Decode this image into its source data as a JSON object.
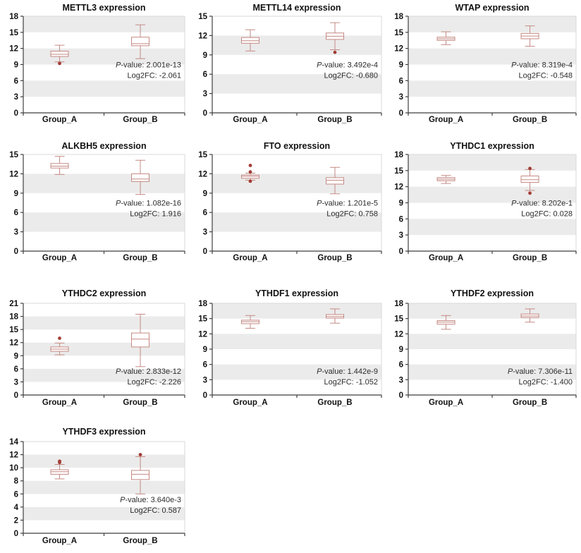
{
  "figure": {
    "description": "Grid of box plots comparing m6A regulator gene expression between Group_A and Group_B",
    "background": "#ffffff"
  },
  "styles": {
    "box_stroke": "#c48a84",
    "box_fill": "#ffffff",
    "outlier_fill": "#a23c36",
    "band_gray": "#ebebeb",
    "plot_border": "#d9d9d9",
    "axis_color": "#3f3f3f",
    "label_color": "#111111",
    "annot_color": "#2b2b2b"
  },
  "strings": {
    "p_italic": "P",
    "p_rest": "-value: ",
    "fc_label": "Log2FC: "
  },
  "chart_data": [
    {
      "type": "box",
      "title": "METTL3 expression",
      "categories": [
        "Group_A",
        "Group_B"
      ],
      "ylim": [
        0,
        18
      ],
      "ytick_step": 3,
      "grid_bands": "alternating",
      "series": [
        {
          "name": "Group_A",
          "whislo": 9.5,
          "q1": 10.5,
          "med": 10.9,
          "q3": 11.5,
          "whishi": 12.6,
          "outliers": [
            9.2
          ]
        },
        {
          "name": "Group_B",
          "whislo": 10.1,
          "q1": 12.5,
          "med": 12.9,
          "q3": 14.1,
          "whishi": 16.4,
          "outliers": []
        }
      ],
      "p_value": "2.001e-13",
      "log2fc": "-2.061",
      "layout": {
        "annot_y_frac": 0.53
      }
    },
    {
      "type": "box",
      "title": "METTL14 expression",
      "categories": [
        "Group_A",
        "Group_B"
      ],
      "ylim": [
        0,
        15
      ],
      "ytick_step": 3,
      "grid_bands": "alternating",
      "series": [
        {
          "name": "Group_A",
          "whislo": 9.6,
          "q1": 10.8,
          "med": 11.2,
          "q3": 11.7,
          "whishi": 12.9,
          "outliers": []
        },
        {
          "name": "Group_B",
          "whislo": 9.8,
          "q1": 11.4,
          "med": 11.9,
          "q3": 12.4,
          "whishi": 14.0,
          "outliers": [
            9.4
          ]
        }
      ],
      "p_value": "3.492e-4",
      "log2fc": "-0.680",
      "layout": {
        "annot_y_frac": 0.53
      }
    },
    {
      "type": "box",
      "title": "WTAP expression",
      "categories": [
        "Group_A",
        "Group_B"
      ],
      "ylim": [
        0,
        18
      ],
      "ytick_step": 3,
      "grid_bands": "alternating",
      "series": [
        {
          "name": "Group_A",
          "whislo": 12.7,
          "q1": 13.5,
          "med": 13.8,
          "q3": 14.1,
          "whishi": 15.1,
          "outliers": []
        },
        {
          "name": "Group_B",
          "whislo": 12.4,
          "q1": 13.8,
          "med": 14.3,
          "q3": 14.8,
          "whishi": 16.2,
          "outliers": []
        }
      ],
      "p_value": "8.319e-4",
      "log2fc": "-0.548",
      "layout": {
        "annot_y_frac": 0.53
      }
    },
    {
      "type": "box",
      "title": "ALKBH5 expression",
      "categories": [
        "Group_A",
        "Group_B"
      ],
      "ylim": [
        0,
        15
      ],
      "ytick_step": 3,
      "grid_bands": "alternating",
      "series": [
        {
          "name": "Group_A",
          "whislo": 11.9,
          "q1": 12.9,
          "med": 13.2,
          "q3": 13.6,
          "whishi": 14.7,
          "outliers": []
        },
        {
          "name": "Group_B",
          "whislo": 8.8,
          "q1": 10.8,
          "med": 11.2,
          "q3": 12.0,
          "whishi": 14.1,
          "outliers": []
        }
      ],
      "p_value": "1.082e-16",
      "log2fc": "1.916",
      "layout": {
        "annot_y_frac": 0.53
      }
    },
    {
      "type": "box",
      "title": "FTO expression",
      "categories": [
        "Group_A",
        "Group_B"
      ],
      "ylim": [
        0,
        15
      ],
      "ytick_step": 3,
      "grid_bands": "alternating",
      "series": [
        {
          "name": "Group_A",
          "whislo": 11.0,
          "q1": 11.3,
          "med": 11.6,
          "q3": 11.8,
          "whishi": 12.1,
          "outliers": [
            13.3,
            12.3,
            10.85
          ]
        },
        {
          "name": "Group_B",
          "whislo": 8.9,
          "q1": 10.4,
          "med": 11.0,
          "q3": 11.4,
          "whishi": 13.0,
          "outliers": []
        }
      ],
      "p_value": "1.201e-5",
      "log2fc": "0.758",
      "layout": {
        "annot_y_frac": 0.53
      }
    },
    {
      "type": "box",
      "title": "YTHDC1 expression",
      "categories": [
        "Group_A",
        "Group_B"
      ],
      "ylim": [
        0,
        18
      ],
      "ytick_step": 3,
      "grid_bands": "alternating",
      "series": [
        {
          "name": "Group_A",
          "whislo": 12.6,
          "q1": 13.1,
          "med": 13.4,
          "q3": 13.7,
          "whishi": 14.1,
          "outliers": []
        },
        {
          "name": "Group_B",
          "whislo": 11.3,
          "q1": 12.8,
          "med": 13.3,
          "q3": 14.0,
          "whishi": 15.2,
          "outliers": [
            15.4,
            10.8
          ]
        }
      ],
      "p_value": "8.202e-1",
      "log2fc": "0.028",
      "layout": {
        "annot_y_frac": 0.53
      }
    },
    {
      "type": "box",
      "title": "YTHDC2 expression",
      "categories": [
        "Group_A",
        "Group_B"
      ],
      "ylim": [
        0,
        21
      ],
      "ytick_step": 3,
      "grid_bands": "alternating",
      "series": [
        {
          "name": "Group_A",
          "whislo": 9.2,
          "q1": 10.0,
          "med": 10.5,
          "q3": 11.0,
          "whishi": 11.9,
          "outliers": [
            13.0
          ]
        },
        {
          "name": "Group_B",
          "whislo": 6.5,
          "q1": 11.0,
          "med": 12.8,
          "q3": 14.2,
          "whishi": 18.5,
          "outliers": []
        }
      ],
      "p_value": "2.833e-12",
      "log2fc": "-2.226",
      "layout": {
        "annot_y_frac": 0.77
      }
    },
    {
      "type": "box",
      "title": "YTHDF1 expression",
      "categories": [
        "Group_A",
        "Group_B"
      ],
      "ylim": [
        0,
        18
      ],
      "ytick_step": 3,
      "grid_bands": "alternating",
      "series": [
        {
          "name": "Group_A",
          "whislo": 13.1,
          "q1": 14.0,
          "med": 14.4,
          "q3": 14.7,
          "whishi": 15.6,
          "outliers": []
        },
        {
          "name": "Group_B",
          "whislo": 14.1,
          "q1": 15.1,
          "med": 15.4,
          "q3": 15.8,
          "whishi": 16.9,
          "outliers": []
        }
      ],
      "p_value": "1.442e-9",
      "log2fc": "-1.052",
      "layout": {
        "annot_y_frac": 0.77
      }
    },
    {
      "type": "box",
      "title": "YTHDF2 expression",
      "categories": [
        "Group_A",
        "Group_B"
      ],
      "ylim": [
        0,
        18
      ],
      "ytick_step": 3,
      "grid_bands": "alternating",
      "series": [
        {
          "name": "Group_A",
          "whislo": 12.9,
          "q1": 13.9,
          "med": 14.3,
          "q3": 14.6,
          "whishi": 15.6,
          "outliers": []
        },
        {
          "name": "Group_B",
          "whislo": 14.3,
          "q1": 15.2,
          "med": 15.5,
          "q3": 15.9,
          "whishi": 16.9,
          "outliers": []
        }
      ],
      "p_value": "7.306e-11",
      "log2fc": "-1.400",
      "layout": {
        "annot_y_frac": 0.77
      }
    },
    {
      "type": "box",
      "title": "YTHDF3 expression",
      "categories": [
        "Group_A",
        "Group_B"
      ],
      "ylim": [
        0,
        14
      ],
      "ytick_step": 2,
      "grid_bands": "alternating",
      "series": [
        {
          "name": "Group_A",
          "whislo": 8.3,
          "q1": 9.0,
          "med": 9.4,
          "q3": 9.7,
          "whishi": 10.5,
          "outliers": [
            10.8,
            11.0
          ]
        },
        {
          "name": "Group_B",
          "whislo": 6.0,
          "q1": 8.2,
          "med": 9.0,
          "q3": 9.6,
          "whishi": 11.7,
          "outliers": [
            12.0
          ]
        }
      ],
      "p_value": "3.640e-3",
      "log2fc": "0.587",
      "layout": {
        "annot_y_frac": 0.66
      }
    }
  ]
}
